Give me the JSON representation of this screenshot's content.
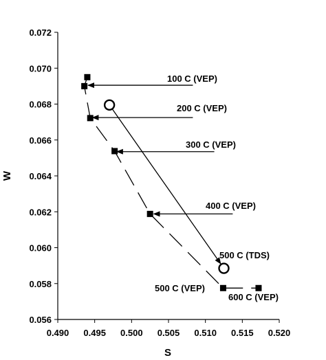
{
  "chart_data": {
    "type": "scatter",
    "xlabel": "S",
    "ylabel": "W",
    "xlim": [
      0.49,
      0.52
    ],
    "ylim": [
      0.056,
      0.072
    ],
    "x_ticks": [
      "0.490",
      "0.495",
      "0.500",
      "0.505",
      "0.510",
      "0.515",
      "0.520"
    ],
    "y_ticks": [
      "0.056",
      "0.058",
      "0.060",
      "0.062",
      "0.064",
      "0.066",
      "0.068",
      "0.070",
      "0.072"
    ],
    "grid": false,
    "series": [
      {
        "marker": "square",
        "line": "dashed",
        "points": [
          {
            "x": 0.494,
            "y": 0.0695
          },
          {
            "x": 0.4936,
            "y": 0.069
          },
          {
            "x": 0.4944,
            "y": 0.06722
          },
          {
            "x": 0.4977,
            "y": 0.06538
          },
          {
            "x": 0.5025,
            "y": 0.06188
          },
          {
            "x": 0.5124,
            "y": 0.05775
          },
          {
            "x": 0.5172,
            "y": 0.05775
          }
        ]
      },
      {
        "marker": "open-circle",
        "line": "solid",
        "points": [
          {
            "x": 0.497,
            "y": 0.06795
          },
          {
            "x": 0.5125,
            "y": 0.05885
          }
        ]
      }
    ],
    "annotations": [
      {
        "text": "100 C (VEP)",
        "arrow_from": {
          "x": 0.5083,
          "y": 0.06905
        },
        "arrow_to": {
          "x": 0.4941,
          "y": 0.06905
        }
      },
      {
        "text": "200 C (VEP)",
        "arrow_from": {
          "x": 0.5083,
          "y": 0.06725
        },
        "arrow_to": {
          "x": 0.4947,
          "y": 0.06725
        }
      },
      {
        "text": "300 C (VEP)",
        "arrow_from": {
          "x": 0.5112,
          "y": 0.06535
        },
        "arrow_to": {
          "x": 0.498,
          "y": 0.06535
        }
      },
      {
        "text": "400 C (VEP)",
        "arrow_from": {
          "x": 0.5137,
          "y": 0.06188
        },
        "arrow_to": {
          "x": 0.503,
          "y": 0.06188
        }
      },
      {
        "text": "500 C (TDS)"
      },
      {
        "text": "500 C (VEP)"
      },
      {
        "text": "600 C (VEP)"
      }
    ],
    "circle_arrow": {
      "from": {
        "x": 0.497,
        "y": 0.06795
      },
      "to": {
        "x": 0.5125,
        "y": 0.05885
      }
    }
  }
}
